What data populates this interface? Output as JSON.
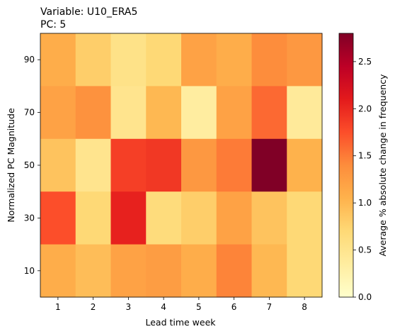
{
  "chart_data": {
    "type": "heatmap",
    "title_lines": [
      "Variable: U10_ERA5",
      "PC: 5"
    ],
    "xlabel": "Lead time week",
    "ylabel": "Normalized PC Magnitude",
    "x_categories": [
      "1",
      "2",
      "3",
      "4",
      "5",
      "6",
      "7",
      "8"
    ],
    "y_categories": [
      "90",
      "70",
      "50",
      "30",
      "10"
    ],
    "values": [
      [
        1.1,
        0.8,
        0.55,
        0.7,
        1.2,
        1.1,
        1.4,
        1.3
      ],
      [
        1.2,
        1.35,
        0.5,
        1.0,
        0.35,
        1.2,
        1.6,
        0.4
      ],
      [
        0.9,
        0.5,
        1.85,
        1.9,
        1.3,
        1.5,
        2.8,
        1.05
      ],
      [
        1.75,
        0.7,
        2.05,
        0.65,
        0.8,
        1.2,
        0.9,
        0.7
      ],
      [
        1.1,
        0.95,
        1.2,
        1.25,
        1.1,
        1.45,
        1.0,
        0.7
      ]
    ],
    "colorbar": {
      "label": "Average % absolute change in frequency",
      "min": 0.0,
      "max": 2.8,
      "ticks": [
        "0.0",
        "0.5",
        "1.0",
        "1.5",
        "2.0",
        "2.5"
      ],
      "colormap": "YlOrRd"
    },
    "grid": false,
    "legend": "none"
  }
}
